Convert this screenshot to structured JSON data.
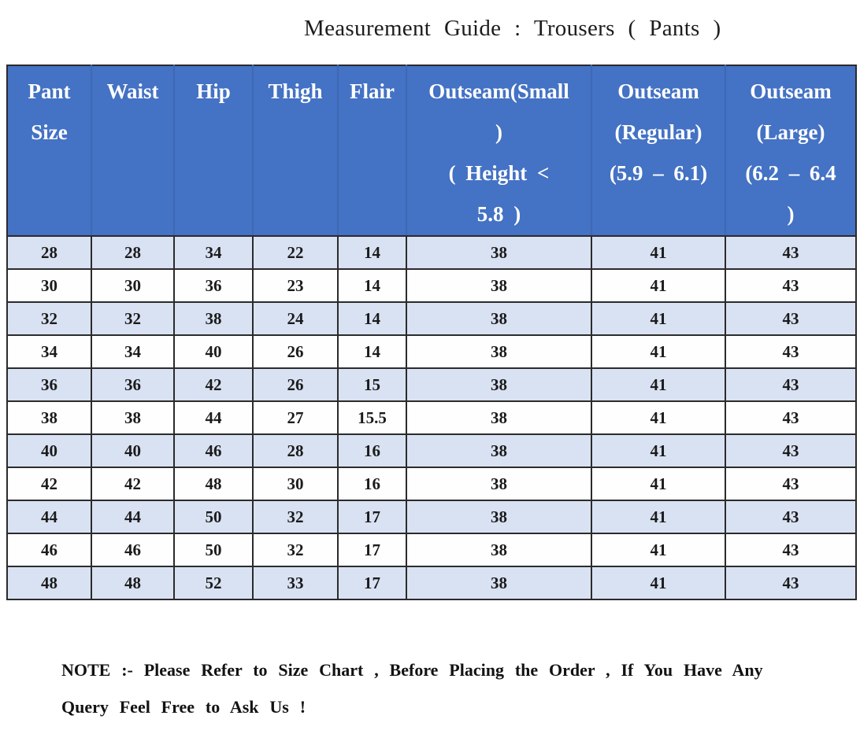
{
  "title": "Measurement Guide : Trousers ( Pants )",
  "chart_data": {
    "type": "table",
    "title": "Measurement Guide : Trousers ( Pants )",
    "columns": [
      "Pant Size",
      "Waist",
      "Hip",
      "Thigh",
      "Flair",
      "Outseam(Small) ( Height < 5.8 )",
      "Outseam (Regular) (5.9 – 6.1)",
      "Outseam (Large) (6.2 – 6.4 )"
    ],
    "rows": [
      [
        "28",
        "28",
        "34",
        "22",
        "14",
        "38",
        "41",
        "43"
      ],
      [
        "30",
        "30",
        "36",
        "23",
        "14",
        "38",
        "41",
        "43"
      ],
      [
        "32",
        "32",
        "38",
        "24",
        "14",
        "38",
        "41",
        "43"
      ],
      [
        "34",
        "34",
        "40",
        "26",
        "14",
        "38",
        "41",
        "43"
      ],
      [
        "36",
        "36",
        "42",
        "26",
        "15",
        "38",
        "41",
        "43"
      ],
      [
        "38",
        "38",
        "44",
        "27",
        "15.5",
        "38",
        "41",
        "43"
      ],
      [
        "40",
        "40",
        "46",
        "28",
        "16",
        "38",
        "41",
        "43"
      ],
      [
        "42",
        "42",
        "48",
        "30",
        "16",
        "38",
        "41",
        "43"
      ],
      [
        "44",
        "44",
        "50",
        "32",
        "17",
        "38",
        "41",
        "43"
      ],
      [
        "46",
        "46",
        "50",
        "32",
        "17",
        "38",
        "41",
        "43"
      ],
      [
        "48",
        "48",
        "52",
        "33",
        "17",
        "38",
        "41",
        "43"
      ]
    ],
    "layout": {
      "header_bg": "#4472C4",
      "alt_row_bg": "#D9E2F3",
      "row_bg": "#FFFFFF",
      "grid": true
    }
  },
  "table": {
    "header_lines": [
      [
        "Pant",
        "Size"
      ],
      [
        "Waist"
      ],
      [
        "Hip"
      ],
      [
        "Thigh"
      ],
      [
        "Flair"
      ],
      [
        "Outseam(Small",
        ")",
        "( Height <",
        "5.8 )"
      ],
      [
        "Outseam",
        "(Regular)",
        "(5.9 – 6.1)"
      ],
      [
        "Outseam",
        "(Large)",
        "(6.2 – 6.4",
        ")"
      ]
    ]
  },
  "note": {
    "lines": [
      "NOTE :- Please Refer to Size Chart , Before Placing the Order , If You Have Any",
      "Query Feel Free to Ask Us !"
    ]
  },
  "colors": {
    "header_bg": "#4472C4",
    "header_separator": "#3D68B4",
    "alt_row_bg": "#D9E2F3",
    "row_bg": "#FFFFFF",
    "header_text": "#FFFFFF",
    "body_text": "#1B1B1B",
    "border": "#2B2B2B"
  }
}
